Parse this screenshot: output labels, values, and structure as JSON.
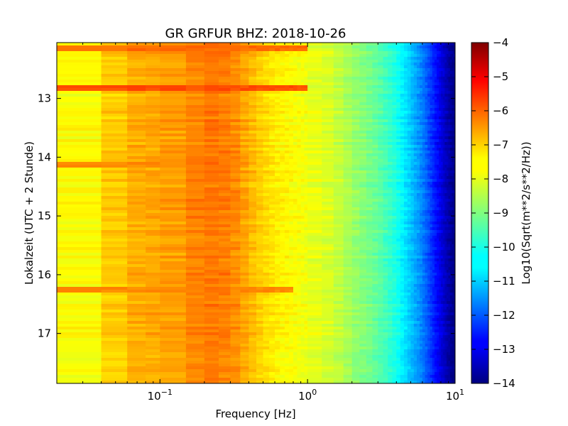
{
  "chart_data": {
    "type": "heatmap",
    "title": "GR GRFUR BHZ: 2018-10-26",
    "xlabel": "Frequency [Hz]",
    "ylabel": "Lokalzeit (UTC + 2 Stunde)",
    "x_scale": "log",
    "x_base_label": "10",
    "x_ticks": [
      {
        "value": 0.1,
        "exp": "−1"
      },
      {
        "value": 1,
        "exp": "0"
      },
      {
        "value": 10,
        "exp": "1"
      }
    ],
    "xlim": [
      0.02,
      10
    ],
    "y_inverted": true,
    "y_ticks": [
      "13",
      "14",
      "15",
      "16",
      "17"
    ],
    "ylim": [
      12.05,
      17.85
    ],
    "colorbar": {
      "label": "Log10(Sqrt(m**2/s**2/Hz))",
      "ticks": [
        "−4",
        "−5",
        "−6",
        "−7",
        "−8",
        "−9",
        "−10",
        "−11",
        "−12",
        "−13",
        "−14"
      ],
      "range": [
        -14,
        -4
      ],
      "colormap": "jet"
    },
    "spectrum_profile": {
      "freq_hz": [
        0.02,
        0.04,
        0.06,
        0.08,
        0.1,
        0.15,
        0.2,
        0.3,
        0.45,
        0.6,
        1.0,
        1.5,
        2.0,
        3.0,
        4.0,
        5.0,
        6.0,
        7.0,
        8.0,
        9.0,
        10.0
      ],
      "log10_amplitude": [
        -8.0,
        -7.5,
        -7.0,
        -6.9,
        -6.9,
        -6.7,
        -6.4,
        -6.5,
        -7.2,
        -7.6,
        -7.9,
        -8.2,
        -8.7,
        -9.3,
        -10.0,
        -10.8,
        -11.5,
        -12.3,
        -13.0,
        -13.6,
        -14.0
      ]
    },
    "bright_lines": [
      {
        "time": 12.13,
        "f_max_hz": 1.0,
        "log10_amplitude": -6.3
      },
      {
        "time": 12.82,
        "f_max_hz": 1.0,
        "log10_amplitude": -6.0
      },
      {
        "time": 14.12,
        "f_max_hz": 0.4,
        "log10_amplitude": -6.6
      },
      {
        "time": 16.27,
        "f_max_hz": 0.8,
        "log10_amplitude": -6.6
      }
    ],
    "colors": {
      "jet": [
        "#00007f",
        "#0000ff",
        "#007fff",
        "#00ffff",
        "#7fff7f",
        "#ffff00",
        "#ff7f00",
        "#ff0000",
        "#7f0000"
      ]
    }
  }
}
